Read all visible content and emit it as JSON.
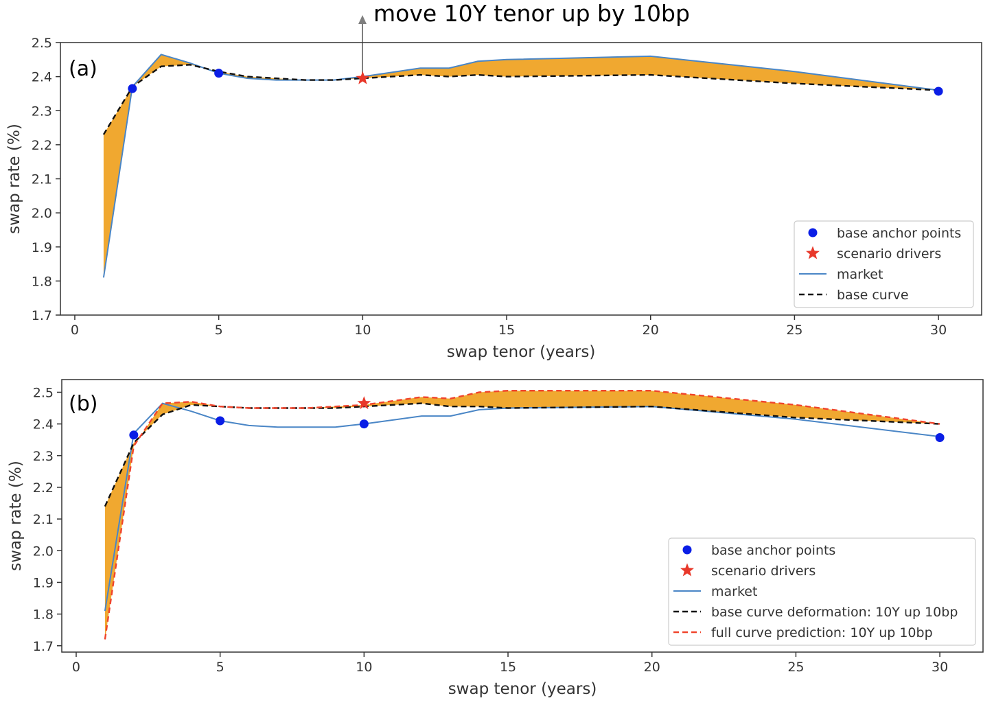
{
  "annotation": {
    "text": "move 10Y tenor up by 10bp"
  },
  "chart_data": [
    {
      "type": "line",
      "panel_label": "(a)",
      "xlabel": "swap tenor (years)",
      "ylabel": "swap rate (%)",
      "xlim": [
        -0.5,
        31.5
      ],
      "ylim": [
        1.7,
        2.5
      ],
      "xticks": [
        0,
        5,
        10,
        15,
        20,
        25,
        30
      ],
      "xtick_labels": [
        "0",
        "5",
        "10",
        "15",
        "20",
        "25",
        "30"
      ],
      "yticks": [
        1.7,
        1.8,
        1.9,
        2.0,
        2.1,
        2.2,
        2.3,
        2.4,
        2.5
      ],
      "ytick_labels": [
        "1.7",
        "1.8",
        "1.9",
        "2.0",
        "2.1",
        "2.2",
        "2.3",
        "2.4",
        "2.5"
      ],
      "grid": false,
      "legend_position": "lower right",
      "fill_between": [
        "market",
        "base curve"
      ],
      "fill_color": "#f0a830",
      "series": [
        {
          "name": "market",
          "style": "solid",
          "color": "#4a86c6",
          "x": [
            1,
            2,
            3,
            4,
            5,
            6,
            7,
            8,
            9,
            10,
            12,
            13,
            14,
            15,
            20,
            25,
            30
          ],
          "y": [
            1.81,
            2.37,
            2.465,
            2.44,
            2.41,
            2.395,
            2.39,
            2.39,
            2.39,
            2.4,
            2.425,
            2.425,
            2.445,
            2.45,
            2.46,
            2.415,
            2.36
          ]
        },
        {
          "name": "base curve",
          "style": "dashed",
          "color": "#111111",
          "x": [
            1,
            2,
            3,
            4,
            5,
            6,
            7,
            8,
            9,
            10,
            12,
            13,
            14,
            15,
            20,
            25,
            30
          ],
          "y": [
            2.23,
            2.37,
            2.43,
            2.435,
            2.415,
            2.4,
            2.395,
            2.39,
            2.39,
            2.395,
            2.405,
            2.4,
            2.405,
            2.4,
            2.405,
            2.38,
            2.36
          ]
        },
        {
          "name": "base anchor points",
          "style": "marker",
          "marker": "circle",
          "color": "#0a1ee6",
          "x": [
            2,
            5,
            30
          ],
          "y": [
            2.365,
            2.41,
            2.357
          ]
        },
        {
          "name": "scenario drivers",
          "style": "marker",
          "marker": "star",
          "color": "#e8382a",
          "x": [
            10
          ],
          "y": [
            2.395
          ]
        }
      ],
      "legend": [
        "base anchor points",
        "scenario drivers",
        "market",
        "base curve"
      ]
    },
    {
      "type": "line",
      "panel_label": "(b)",
      "xlabel": "swap tenor (years)",
      "ylabel": "swap rate (%)",
      "xlim": [
        -0.5,
        31.5
      ],
      "ylim": [
        1.68,
        2.54
      ],
      "xticks": [
        0,
        5,
        10,
        15,
        20,
        25,
        30
      ],
      "xtick_labels": [
        "0",
        "5",
        "10",
        "15",
        "20",
        "25",
        "30"
      ],
      "yticks": [
        1.7,
        1.8,
        1.9,
        2.0,
        2.1,
        2.2,
        2.3,
        2.4,
        2.5
      ],
      "ytick_labels": [
        "1.7",
        "1.8",
        "1.9",
        "2.0",
        "2.1",
        "2.2",
        "2.3",
        "2.4",
        "2.5"
      ],
      "grid": false,
      "legend_position": "lower right",
      "fill_between": [
        "base curve deformation: 10Y up 10bp",
        "full curve prediction: 10Y up 10bp"
      ],
      "fill_color": "#f0a830",
      "series": [
        {
          "name": "market",
          "style": "solid",
          "color": "#4a86c6",
          "x": [
            1,
            2,
            3,
            4,
            5,
            6,
            7,
            8,
            9,
            10,
            12,
            13,
            14,
            15,
            20,
            25,
            30
          ],
          "y": [
            1.81,
            2.37,
            2.465,
            2.44,
            2.41,
            2.395,
            2.39,
            2.39,
            2.39,
            2.4,
            2.425,
            2.425,
            2.445,
            2.45,
            2.455,
            2.415,
            2.36
          ]
        },
        {
          "name": "base curve deformation: 10Y up 10bp",
          "style": "dashed",
          "color": "#111111",
          "x": [
            1,
            2,
            3,
            4,
            5,
            6,
            7,
            8,
            9,
            10,
            12,
            13,
            14,
            15,
            20,
            25,
            30
          ],
          "y": [
            2.14,
            2.34,
            2.43,
            2.46,
            2.455,
            2.45,
            2.45,
            2.45,
            2.45,
            2.455,
            2.465,
            2.455,
            2.455,
            2.45,
            2.455,
            2.42,
            2.4
          ]
        },
        {
          "name": "full curve prediction: 10Y up 10bp",
          "style": "dashed",
          "color": "#f0442c",
          "x": [
            1,
            2,
            3,
            4,
            5,
            6,
            7,
            8,
            9,
            10,
            12,
            13,
            14,
            15,
            20,
            25,
            30
          ],
          "y": [
            1.72,
            2.33,
            2.465,
            2.47,
            2.455,
            2.45,
            2.45,
            2.45,
            2.455,
            2.46,
            2.485,
            2.48,
            2.5,
            2.505,
            2.505,
            2.46,
            2.4
          ]
        },
        {
          "name": "base anchor points",
          "style": "marker",
          "marker": "circle",
          "color": "#0a1ee6",
          "x": [
            2,
            5,
            10,
            30
          ],
          "y": [
            2.365,
            2.41,
            2.4,
            2.357
          ]
        },
        {
          "name": "scenario drivers",
          "style": "marker",
          "marker": "star",
          "color": "#e8382a",
          "x": [
            10
          ],
          "y": [
            2.465
          ]
        }
      ],
      "legend": [
        "base anchor points",
        "scenario drivers",
        "market",
        "base curve deformation: 10Y up 10bp",
        "full curve prediction: 10Y up 10bp"
      ]
    }
  ]
}
